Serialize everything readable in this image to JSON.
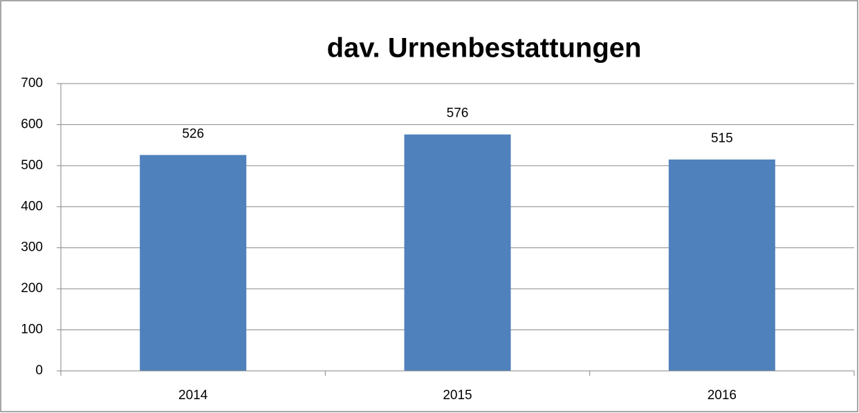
{
  "chart_data": {
    "type": "bar",
    "title": "dav. Urnenbestattungen",
    "categories": [
      "2014",
      "2015",
      "2016"
    ],
    "values": [
      526,
      576,
      515
    ],
    "color": "#4f81bd",
    "ylim": [
      0,
      700
    ],
    "yticks": [
      0,
      100,
      200,
      300,
      400,
      500,
      600,
      700
    ],
    "grid": true
  }
}
